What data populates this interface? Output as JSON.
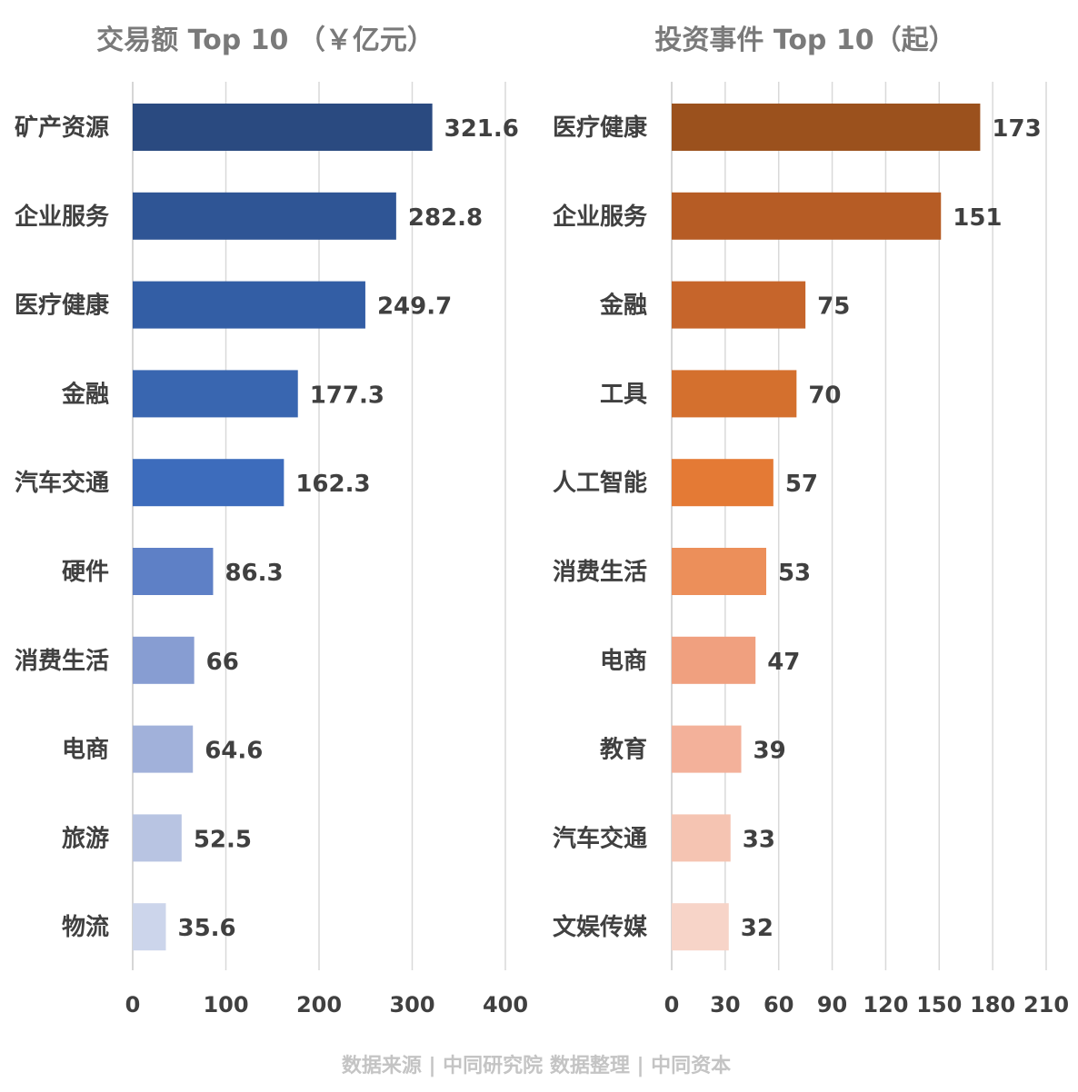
{
  "source_note": "数据来源 | 中同研究院  数据整理 | 中同资本",
  "chart_data": [
    {
      "type": "bar",
      "orientation": "horizontal",
      "title": "交易额 Top 10 （￥亿元）",
      "categories": [
        "矿产资源",
        "企业服务",
        "医疗健康",
        "金融",
        "汽车交通",
        "硬件",
        "消费生活",
        "电商",
        "旅游",
        "物流"
      ],
      "values": [
        321.6,
        282.8,
        249.7,
        177.3,
        162.3,
        86.3,
        66,
        64.6,
        52.5,
        35.6
      ],
      "value_labels": [
        "321.6",
        "282.8",
        "249.7",
        "177.3",
        "162.3",
        "86.3",
        "66",
        "64.6",
        "52.5",
        "35.6"
      ],
      "xlim": [
        0,
        400
      ],
      "ticks": [
        0,
        100,
        200,
        300,
        400
      ],
      "tick_labels": [
        "0",
        "100",
        "200",
        "300",
        "400"
      ],
      "grid": true,
      "colors": [
        "#2a4a80",
        "#2f5595",
        "#335ea5",
        "#3966b0",
        "#3d6cbc",
        "#5e80c6",
        "#879dd2",
        "#a1b1da",
        "#b8c4e2",
        "#ccd5eb"
      ]
    },
    {
      "type": "bar",
      "orientation": "horizontal",
      "title": "投资事件 Top 10（起）",
      "categories": [
        "医疗健康",
        "企业服务",
        "金融",
        "工具",
        "人工智能",
        "消费生活",
        "电商",
        "教育",
        "汽车交通",
        "文娱传媒"
      ],
      "values": [
        173,
        151,
        75,
        70,
        57,
        53,
        47,
        39,
        33,
        32
      ],
      "value_labels": [
        "173",
        "151",
        "75",
        "70",
        "57",
        "53",
        "47",
        "39",
        "33",
        "32"
      ],
      "xlim": [
        0,
        210
      ],
      "ticks": [
        0,
        30,
        60,
        90,
        120,
        150,
        180,
        210
      ],
      "tick_labels": [
        "0",
        "30",
        "60",
        "90",
        "120",
        "150",
        "180",
        "210"
      ],
      "grid": true,
      "colors": [
        "#9b511d",
        "#b65c25",
        "#c6652b",
        "#d4702e",
        "#e47a35",
        "#ec8f5a",
        "#f0a07f",
        "#f3b19a",
        "#f5c4b2",
        "#f7d4c8"
      ]
    }
  ]
}
